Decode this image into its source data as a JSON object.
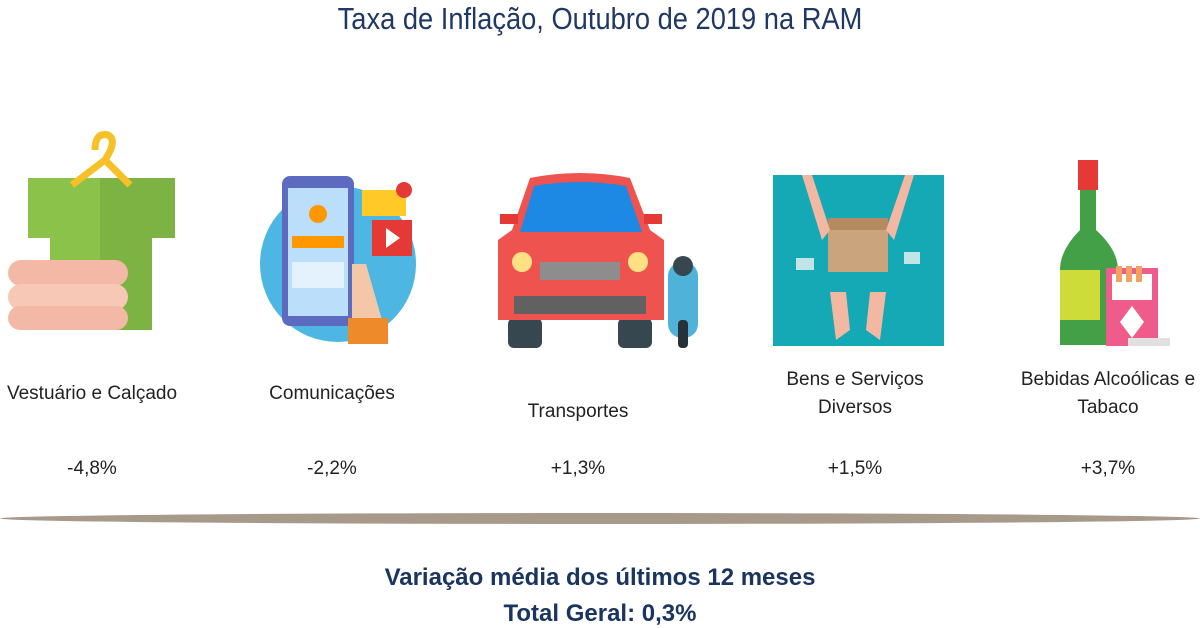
{
  "header": {
    "title": "Taxa de Inflação, Outubro de 2019 na RAM"
  },
  "items": [
    {
      "label": "Vestuário e Calçado",
      "value": "-4,8%"
    },
    {
      "label": "Comunicações",
      "value": "-2,2%"
    },
    {
      "label": "Transportes",
      "value": "+1,3%"
    },
    {
      "label": "Bens e Serviços Diversos",
      "value": "+1,5%"
    },
    {
      "label": "Bebidas Alcoólicas e Tabaco",
      "value": "+3,7%"
    }
  ],
  "footer": {
    "line1": "Variação média dos últimos 12 meses",
    "line2": "Total Geral: 0,3%"
  }
}
